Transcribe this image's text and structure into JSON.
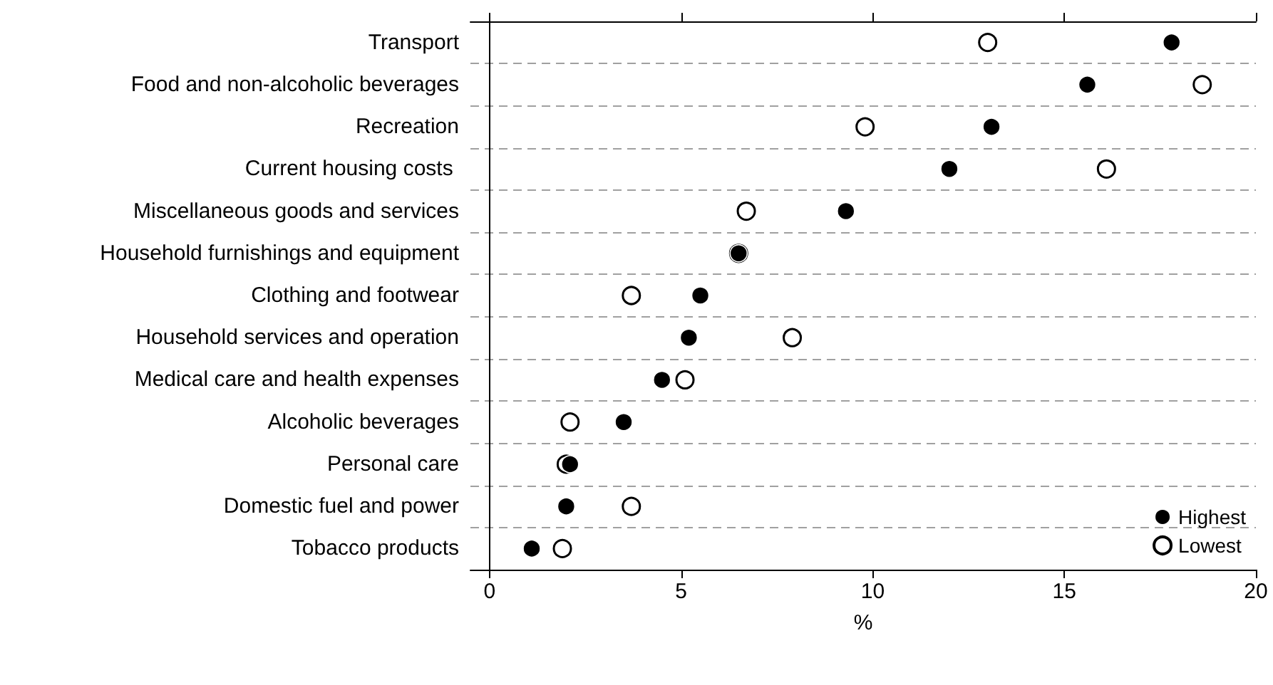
{
  "chart_data": {
    "type": "scatter",
    "orientation": "horizontal",
    "xlabel": "%",
    "categories": [
      "Transport",
      "Food and non-alcoholic beverages",
      "Recreation",
      "Current housing costs ",
      "Miscellaneous goods and services",
      "Household furnishings and equipment",
      "Clothing and footwear",
      "Household services and operation",
      "Medical care and health expenses",
      "Alcoholic beverages",
      "Personal care",
      "Domestic fuel and power",
      "Tobacco products"
    ],
    "series": [
      {
        "name": "Highest",
        "color": "#000000",
        "values": [
          17.8,
          15.6,
          13.1,
          12.0,
          9.3,
          6.5,
          5.5,
          5.2,
          4.5,
          3.5,
          2.1,
          2.0,
          1.1
        ]
      },
      {
        "name": "Lowest",
        "color": "#ffffff",
        "values": [
          13.0,
          18.6,
          9.8,
          16.1,
          6.7,
          6.5,
          3.7,
          7.9,
          5.1,
          2.1,
          2.0,
          3.7,
          1.9
        ]
      }
    ],
    "xlim": [
      -0.5,
      20
    ],
    "xticks": [
      0,
      5,
      10,
      15,
      20
    ],
    "grid": "y",
    "legend": "bottom right",
    "marker": "circle"
  }
}
